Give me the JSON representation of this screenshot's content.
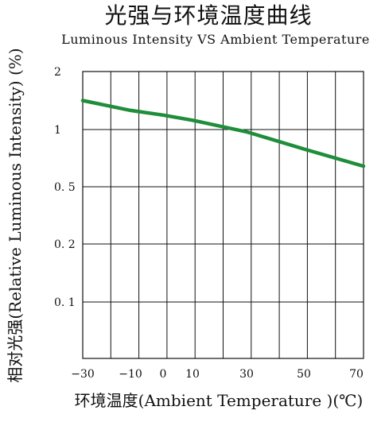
{
  "chart_data": {
    "type": "line",
    "title": "光强与环境温度曲线",
    "subtitle": "Luminous Intensity VS Ambient Temperature",
    "xlabel": "环境温度(Ambient  Temperature )(℃)",
    "ylabel": "相对光强(Relative  Luminous  Intensity) (%)",
    "x_ticks": [
      {
        "value": -30,
        "label": "−30"
      },
      {
        "value": -10,
        "label": "−10"
      },
      {
        "value": 0,
        "label": "0"
      },
      {
        "value": 10,
        "label": "10"
      },
      {
        "value": 30,
        "label": "30"
      },
      {
        "value": 50,
        "label": "50"
      },
      {
        "value": 70,
        "label": "70"
      }
    ],
    "y_ticks": [
      {
        "value": 2,
        "label": "2"
      },
      {
        "value": 1,
        "label": "1"
      },
      {
        "value": 0.5,
        "label": "0. 5"
      },
      {
        "value": 0.2,
        "label": "0. 2"
      },
      {
        "value": 0.1,
        "label": "0. 1"
      }
    ],
    "xlim": [
      -30,
      72
    ],
    "ylim": [
      0.05,
      2.1
    ],
    "grid": true,
    "series": [
      {
        "x": [
          -30,
          -10,
          0,
          10,
          30,
          50,
          72
        ],
        "y": [
          1.5,
          1.33,
          1.25,
          1.16,
          0.98,
          0.83,
          0.68
        ],
        "color": "#1f8d3a"
      }
    ]
  }
}
